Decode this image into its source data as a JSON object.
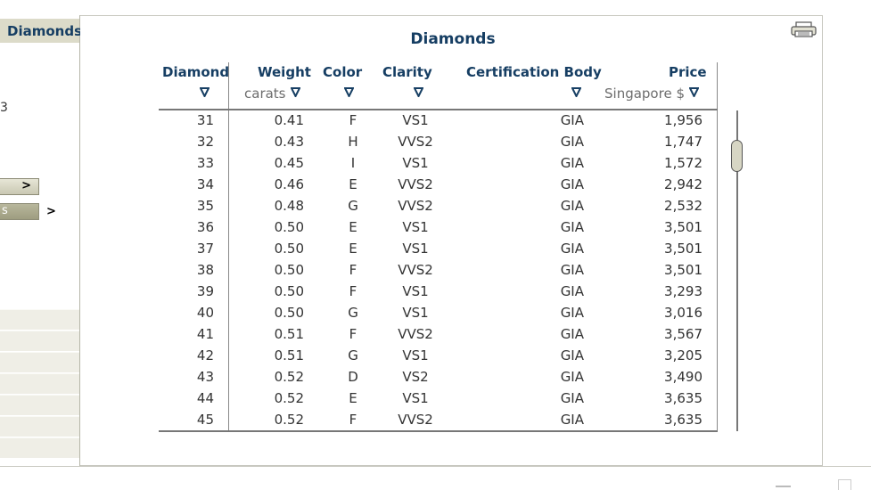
{
  "sidebar": {
    "title": "Diamonds",
    "partial_number": "3",
    "button1_label": ">",
    "button2_label": "s",
    "arrow_label": ">"
  },
  "table": {
    "title": "Diamonds",
    "headers": {
      "diamond": "Diamond",
      "weight": "Weight",
      "weight_unit": "carats",
      "color": "Color",
      "clarity": "Clarity",
      "cert": "Certification Body",
      "price": "Price",
      "price_unit": "Singapore $"
    },
    "rows": [
      [
        "31",
        "0.41",
        "F",
        "VS1",
        "GIA",
        "1,956"
      ],
      [
        "32",
        "0.43",
        "H",
        "VVS2",
        "GIA",
        "1,747"
      ],
      [
        "33",
        "0.45",
        "I",
        "VS1",
        "GIA",
        "1,572"
      ],
      [
        "34",
        "0.46",
        "E",
        "VVS2",
        "GIA",
        "2,942"
      ],
      [
        "35",
        "0.48",
        "G",
        "VVS2",
        "GIA",
        "2,532"
      ],
      [
        "36",
        "0.50",
        "E",
        "VS1",
        "GIA",
        "3,501"
      ],
      [
        "37",
        "0.50",
        "E",
        "VS1",
        "GIA",
        "3,501"
      ],
      [
        "38",
        "0.50",
        "F",
        "VVS2",
        "GIA",
        "3,501"
      ],
      [
        "39",
        "0.50",
        "F",
        "VS1",
        "GIA",
        "3,293"
      ],
      [
        "40",
        "0.50",
        "G",
        "VS1",
        "GIA",
        "3,016"
      ],
      [
        "41",
        "0.51",
        "F",
        "VVS2",
        "GIA",
        "3,567"
      ],
      [
        "42",
        "0.51",
        "G",
        "VS1",
        "GIA",
        "3,205"
      ],
      [
        "43",
        "0.52",
        "D",
        "VS2",
        "GIA",
        "3,490"
      ],
      [
        "44",
        "0.52",
        "E",
        "VS1",
        "GIA",
        "3,635"
      ],
      [
        "45",
        "0.52",
        "F",
        "VVS2",
        "GIA",
        "3,635"
      ]
    ]
  },
  "icons": {
    "print": "printer-icon",
    "sort": "sort-down-triangle-icon"
  },
  "colors": {
    "header_text": "#163e63",
    "sidebar_title_bg": "#dcdbc9"
  }
}
